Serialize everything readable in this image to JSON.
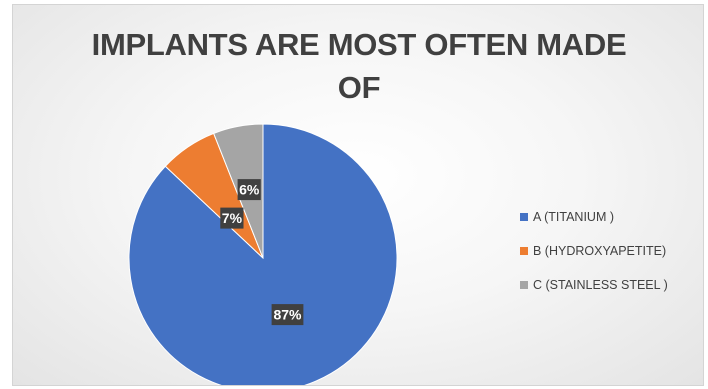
{
  "chart_data": {
    "type": "pie",
    "title": "IMPLANTS ARE MOST OFTEN MADE OF",
    "title_lines": [
      "IMPLANTS ARE MOST OFTEN MADE",
      "OF"
    ],
    "categories": [
      "A (TITANIUM )",
      "B (HYDROXYAPETITE)",
      "C (STAINLESS STEEL )"
    ],
    "values": [
      87,
      7,
      6
    ],
    "data_labels": [
      "87%",
      "7%",
      "6%"
    ],
    "colors": [
      "#4472C4",
      "#ED7D31",
      "#A5A5A5"
    ],
    "start_angle": "12 o'clock",
    "direction": "clockwise",
    "legend_position": "right"
  }
}
